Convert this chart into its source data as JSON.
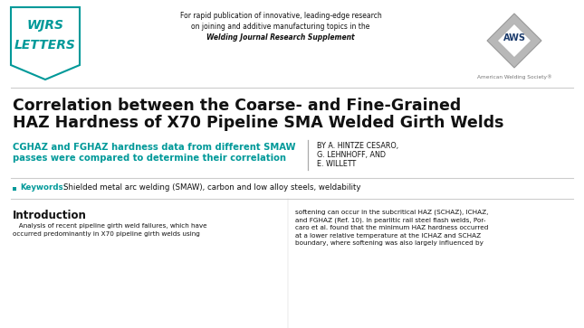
{
  "bg_color": "#ffffff",
  "teal_color": "#009999",
  "dark_blue": "#1a3a6b",
  "gray_color": "#777777",
  "black": "#111111",
  "light_gray_line": "#cccccc",
  "wjrs_line1": "WJRS",
  "wjrs_line2": "LETTERS",
  "tagline_line1": "For rapid publication of innovative, leading-edge research",
  "tagline_line2": "on joining and additive manufacturing topics in the",
  "tagline_line3": "Welding Journal Research Supplement",
  "main_title_line1": "Correlation between the Coarse- and Fine-Grained",
  "main_title_line2": "HAZ Hardness of X70 Pipeline SMA Welded Girth Welds",
  "subtitle_line1": "CGHAZ and FGHAZ hardness data from different SMAW",
  "subtitle_line2": "passes were compared to determine their correlation",
  "authors_line1": "BY A. HINTZE CESARO,",
  "authors_line2": "G. LEHNHOFF, AND",
  "authors_line3": "E. WILLETT",
  "keywords_label": "Keywords:",
  "keywords_text": "Shielded metal arc welding (SMAW), carbon and low alloy steels, weldability",
  "intro_title": "Introduction",
  "intro_left_1": "   Analysis of recent pipeline girth weld failures, which have",
  "intro_left_2": "occurred predominantly in X70 pipeline girth welds using",
  "intro_right_1": "softening can occur in the subcritical HAZ (SCHAZ), ICHAZ,",
  "intro_right_2": "and FGHAZ (Ref. 10). In pearlitic rail steel flash welds, Por-",
  "intro_right_3": "caro et al. found that the minimum HAZ hardness occurred",
  "intro_right_4": "at a lower relative temperature at the ICHAZ and SCHAZ",
  "intro_right_5": "boundary, where softening was also largely influenced by"
}
